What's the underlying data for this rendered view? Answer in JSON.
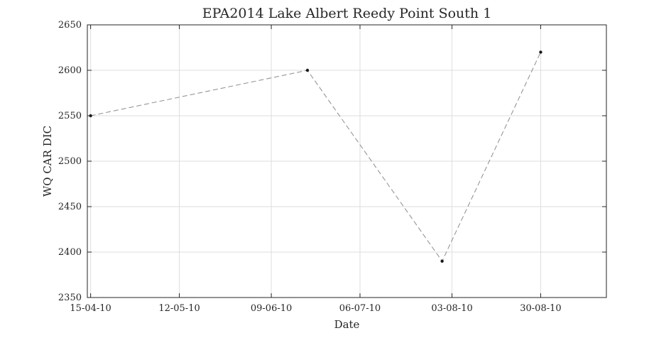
{
  "chart_data": {
    "type": "line",
    "title": "EPA2014 Lake Albert Reedy Point South 1",
    "xlabel": "Date",
    "ylabel": "WQ CAR DIC",
    "x_type": "date",
    "xlim": [
      "2010-04-14",
      "2010-09-19"
    ],
    "ylim": [
      2350,
      2650
    ],
    "grid": true,
    "x_ticks": [
      {
        "date": "2010-04-15",
        "label": "15-04-10"
      },
      {
        "date": "2010-05-12",
        "label": "12-05-10"
      },
      {
        "date": "2010-06-09",
        "label": "09-06-10"
      },
      {
        "date": "2010-07-06",
        "label": "06-07-10"
      },
      {
        "date": "2010-08-03",
        "label": "03-08-10"
      },
      {
        "date": "2010-08-30",
        "label": "30-08-10"
      }
    ],
    "y_ticks": [
      2350,
      2400,
      2450,
      2500,
      2550,
      2600,
      2650
    ],
    "series": [
      {
        "name": "",
        "line_style": "dashed",
        "line_color": "#8c8c8c",
        "marker_color": "#1a1a1a",
        "points": [
          {
            "x": "2010-04-15",
            "y": 2550
          },
          {
            "x": "2010-06-20",
            "y": 2600
          },
          {
            "x": "2010-07-31",
            "y": 2390
          },
          {
            "x": "2010-08-30",
            "y": 2620
          }
        ]
      }
    ]
  }
}
